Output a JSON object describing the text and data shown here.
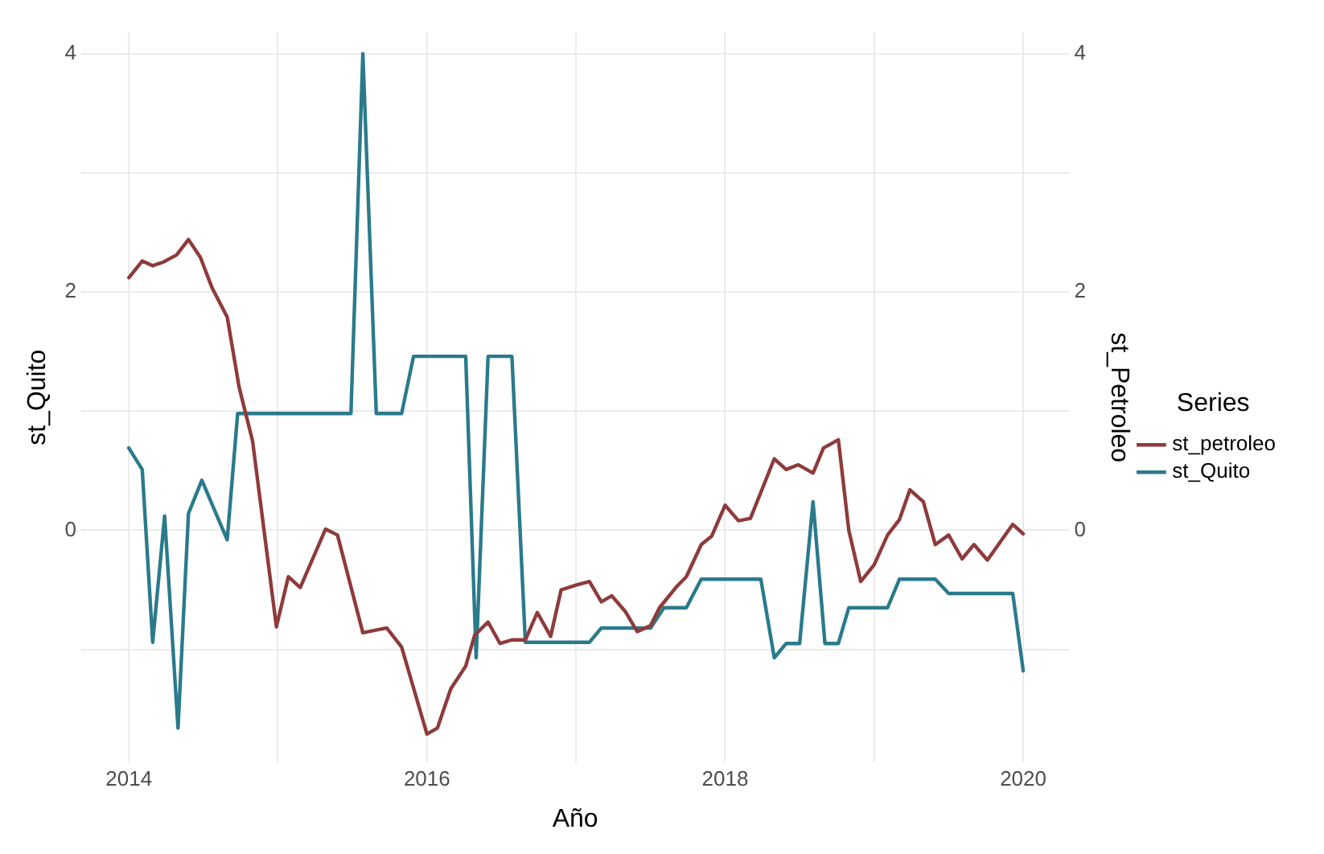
{
  "chart_data": {
    "type": "line",
    "xlabel": "Año",
    "ylabel": "st_Quito",
    "y2label": "st_Petroleo",
    "legend_title": "Series",
    "legend": "right",
    "grid": true,
    "line_style": "solid",
    "marker": "none",
    "xlim": [
      2013.68,
      2020.31
    ],
    "xticks": [
      2014,
      {
        "value": 2015,
        "label": null
      },
      2016,
      {
        "value": 2017,
        "label": null
      },
      2018,
      {
        "value": 2019,
        "label": null
      },
      2020
    ],
    "ylim": [
      -1.95,
      4.18
    ],
    "yticks": [
      {
        "value": -1,
        "label": null
      },
      0,
      {
        "value": 1,
        "label": null
      },
      2,
      {
        "value": 3,
        "label": null
      },
      4
    ],
    "y2lim": [
      -1.95,
      4.18
    ],
    "y2ticks": [
      {
        "value": -1,
        "label": null
      },
      0,
      {
        "value": 1,
        "label": null
      },
      2,
      {
        "value": 3,
        "label": null
      },
      4
    ],
    "series": [
      {
        "name": "st_petroleo",
        "color": "#8e3b3b",
        "axis": "y2",
        "x": [
          2014,
          2014.09,
          2014.16,
          2014.23,
          2014.32,
          2014.4,
          2014.48,
          2014.56,
          2014.66,
          2014.74,
          2014.83,
          2014.99,
          2015.07,
          2015.15,
          2015.32,
          2015.4,
          2015.57,
          2015.73,
          2015.83,
          2016,
          2016.07,
          2016.16,
          2016.26,
          2016.32,
          2016.41,
          2016.49,
          2016.57,
          2016.66,
          2016.74,
          2016.83,
          2016.9,
          2017,
          2017.09,
          2017.17,
          2017.24,
          2017.33,
          2017.41,
          2017.5,
          2017.56,
          2017.67,
          2017.74,
          2017.84,
          2017.91,
          2018,
          2018.09,
          2018.17,
          2018.33,
          2018.41,
          2018.49,
          2018.59,
          2018.66,
          2018.76,
          2018.83,
          2018.91,
          2019,
          2019.09,
          2019.17,
          2019.24,
          2019.33,
          2019.41,
          2019.5,
          2019.59,
          2019.67,
          2019.76,
          2019.93,
          2020
        ],
        "values": [
          2.12,
          2.26,
          2.22,
          2.25,
          2.31,
          2.44,
          2.29,
          2.03,
          1.79,
          1.2,
          0.75,
          -0.81,
          -0.39,
          -0.48,
          0.01,
          -0.04,
          -0.86,
          -0.82,
          -0.98,
          -1.71,
          -1.66,
          -1.33,
          -1.14,
          -0.88,
          -0.77,
          -0.95,
          -0.92,
          -0.92,
          -0.69,
          -0.89,
          -0.5,
          -0.46,
          -0.43,
          -0.6,
          -0.55,
          -0.68,
          -0.85,
          -0.8,
          -0.65,
          -0.48,
          -0.39,
          -0.12,
          -0.05,
          0.21,
          0.08,
          0.1,
          0.6,
          0.51,
          0.55,
          0.48,
          0.69,
          0.76,
          0.0,
          -0.43,
          -0.29,
          -0.04,
          0.09,
          0.34,
          0.24,
          -0.12,
          -0.04,
          -0.24,
          -0.12,
          -0.25,
          0.05,
          -0.03
        ]
      },
      {
        "name": "st_Quito",
        "color": "#2b7a8c",
        "x": [
          2014,
          2014.09,
          2014.16,
          2014.24,
          2014.33,
          2014.4,
          2014.49,
          2014.66,
          2014.73,
          2015.49,
          2015.57,
          2015.66,
          2015.83,
          2015.91,
          2016.26,
          2016.33,
          2016.41,
          2016.57,
          2016.66,
          2017.09,
          2017.17,
          2017.5,
          2017.59,
          2017.74,
          2017.84,
          2018.24,
          2018.33,
          2018.41,
          2018.5,
          2018.59,
          2018.67,
          2018.76,
          2018.83,
          2019.09,
          2019.17,
          2019.41,
          2019.5,
          2019.93,
          2020
        ],
        "values": [
          0.69,
          0.51,
          -0.94,
          0.12,
          -1.66,
          0.14,
          0.42,
          -0.08,
          0.98,
          0.98,
          4.0,
          0.98,
          0.98,
          1.46,
          1.46,
          -1.07,
          1.46,
          1.46,
          -0.94,
          -0.94,
          -0.82,
          -0.82,
          -0.65,
          -0.65,
          -0.41,
          -0.41,
          -1.07,
          -0.95,
          -0.95,
          0.24,
          -0.95,
          -0.95,
          -0.65,
          -0.65,
          -0.41,
          -0.41,
          -0.53,
          -0.53,
          -1.18
        ]
      }
    ]
  }
}
